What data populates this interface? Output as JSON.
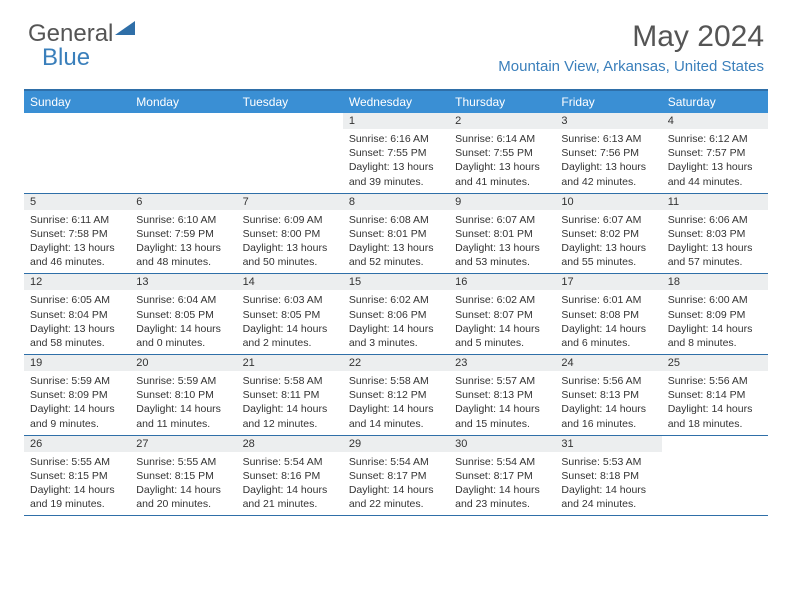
{
  "logo": {
    "part1": "General",
    "part2": "Blue"
  },
  "title": "May 2024",
  "location": "Mountain View, Arkansas, United States",
  "colors": {
    "accent": "#3a8fd4",
    "accent_dark": "#2f6fa8",
    "daybar_bg": "#eceeef",
    "text": "#333333",
    "subtitle": "#3a7fbb"
  },
  "weekdays": [
    "Sunday",
    "Monday",
    "Tuesday",
    "Wednesday",
    "Thursday",
    "Friday",
    "Saturday"
  ],
  "weeks": [
    [
      null,
      null,
      null,
      {
        "day": "1",
        "sunrise": "Sunrise: 6:16 AM",
        "sunset": "Sunset: 7:55 PM",
        "daylight": "Daylight: 13 hours and 39 minutes."
      },
      {
        "day": "2",
        "sunrise": "Sunrise: 6:14 AM",
        "sunset": "Sunset: 7:55 PM",
        "daylight": "Daylight: 13 hours and 41 minutes."
      },
      {
        "day": "3",
        "sunrise": "Sunrise: 6:13 AM",
        "sunset": "Sunset: 7:56 PM",
        "daylight": "Daylight: 13 hours and 42 minutes."
      },
      {
        "day": "4",
        "sunrise": "Sunrise: 6:12 AM",
        "sunset": "Sunset: 7:57 PM",
        "daylight": "Daylight: 13 hours and 44 minutes."
      }
    ],
    [
      {
        "day": "5",
        "sunrise": "Sunrise: 6:11 AM",
        "sunset": "Sunset: 7:58 PM",
        "daylight": "Daylight: 13 hours and 46 minutes."
      },
      {
        "day": "6",
        "sunrise": "Sunrise: 6:10 AM",
        "sunset": "Sunset: 7:59 PM",
        "daylight": "Daylight: 13 hours and 48 minutes."
      },
      {
        "day": "7",
        "sunrise": "Sunrise: 6:09 AM",
        "sunset": "Sunset: 8:00 PM",
        "daylight": "Daylight: 13 hours and 50 minutes."
      },
      {
        "day": "8",
        "sunrise": "Sunrise: 6:08 AM",
        "sunset": "Sunset: 8:01 PM",
        "daylight": "Daylight: 13 hours and 52 minutes."
      },
      {
        "day": "9",
        "sunrise": "Sunrise: 6:07 AM",
        "sunset": "Sunset: 8:01 PM",
        "daylight": "Daylight: 13 hours and 53 minutes."
      },
      {
        "day": "10",
        "sunrise": "Sunrise: 6:07 AM",
        "sunset": "Sunset: 8:02 PM",
        "daylight": "Daylight: 13 hours and 55 minutes."
      },
      {
        "day": "11",
        "sunrise": "Sunrise: 6:06 AM",
        "sunset": "Sunset: 8:03 PM",
        "daylight": "Daylight: 13 hours and 57 minutes."
      }
    ],
    [
      {
        "day": "12",
        "sunrise": "Sunrise: 6:05 AM",
        "sunset": "Sunset: 8:04 PM",
        "daylight": "Daylight: 13 hours and 58 minutes."
      },
      {
        "day": "13",
        "sunrise": "Sunrise: 6:04 AM",
        "sunset": "Sunset: 8:05 PM",
        "daylight": "Daylight: 14 hours and 0 minutes."
      },
      {
        "day": "14",
        "sunrise": "Sunrise: 6:03 AM",
        "sunset": "Sunset: 8:05 PM",
        "daylight": "Daylight: 14 hours and 2 minutes."
      },
      {
        "day": "15",
        "sunrise": "Sunrise: 6:02 AM",
        "sunset": "Sunset: 8:06 PM",
        "daylight": "Daylight: 14 hours and 3 minutes."
      },
      {
        "day": "16",
        "sunrise": "Sunrise: 6:02 AM",
        "sunset": "Sunset: 8:07 PM",
        "daylight": "Daylight: 14 hours and 5 minutes."
      },
      {
        "day": "17",
        "sunrise": "Sunrise: 6:01 AM",
        "sunset": "Sunset: 8:08 PM",
        "daylight": "Daylight: 14 hours and 6 minutes."
      },
      {
        "day": "18",
        "sunrise": "Sunrise: 6:00 AM",
        "sunset": "Sunset: 8:09 PM",
        "daylight": "Daylight: 14 hours and 8 minutes."
      }
    ],
    [
      {
        "day": "19",
        "sunrise": "Sunrise: 5:59 AM",
        "sunset": "Sunset: 8:09 PM",
        "daylight": "Daylight: 14 hours and 9 minutes."
      },
      {
        "day": "20",
        "sunrise": "Sunrise: 5:59 AM",
        "sunset": "Sunset: 8:10 PM",
        "daylight": "Daylight: 14 hours and 11 minutes."
      },
      {
        "day": "21",
        "sunrise": "Sunrise: 5:58 AM",
        "sunset": "Sunset: 8:11 PM",
        "daylight": "Daylight: 14 hours and 12 minutes."
      },
      {
        "day": "22",
        "sunrise": "Sunrise: 5:58 AM",
        "sunset": "Sunset: 8:12 PM",
        "daylight": "Daylight: 14 hours and 14 minutes."
      },
      {
        "day": "23",
        "sunrise": "Sunrise: 5:57 AM",
        "sunset": "Sunset: 8:13 PM",
        "daylight": "Daylight: 14 hours and 15 minutes."
      },
      {
        "day": "24",
        "sunrise": "Sunrise: 5:56 AM",
        "sunset": "Sunset: 8:13 PM",
        "daylight": "Daylight: 14 hours and 16 minutes."
      },
      {
        "day": "25",
        "sunrise": "Sunrise: 5:56 AM",
        "sunset": "Sunset: 8:14 PM",
        "daylight": "Daylight: 14 hours and 18 minutes."
      }
    ],
    [
      {
        "day": "26",
        "sunrise": "Sunrise: 5:55 AM",
        "sunset": "Sunset: 8:15 PM",
        "daylight": "Daylight: 14 hours and 19 minutes."
      },
      {
        "day": "27",
        "sunrise": "Sunrise: 5:55 AM",
        "sunset": "Sunset: 8:15 PM",
        "daylight": "Daylight: 14 hours and 20 minutes."
      },
      {
        "day": "28",
        "sunrise": "Sunrise: 5:54 AM",
        "sunset": "Sunset: 8:16 PM",
        "daylight": "Daylight: 14 hours and 21 minutes."
      },
      {
        "day": "29",
        "sunrise": "Sunrise: 5:54 AM",
        "sunset": "Sunset: 8:17 PM",
        "daylight": "Daylight: 14 hours and 22 minutes."
      },
      {
        "day": "30",
        "sunrise": "Sunrise: 5:54 AM",
        "sunset": "Sunset: 8:17 PM",
        "daylight": "Daylight: 14 hours and 23 minutes."
      },
      {
        "day": "31",
        "sunrise": "Sunrise: 5:53 AM",
        "sunset": "Sunset: 8:18 PM",
        "daylight": "Daylight: 14 hours and 24 minutes."
      },
      null
    ]
  ]
}
